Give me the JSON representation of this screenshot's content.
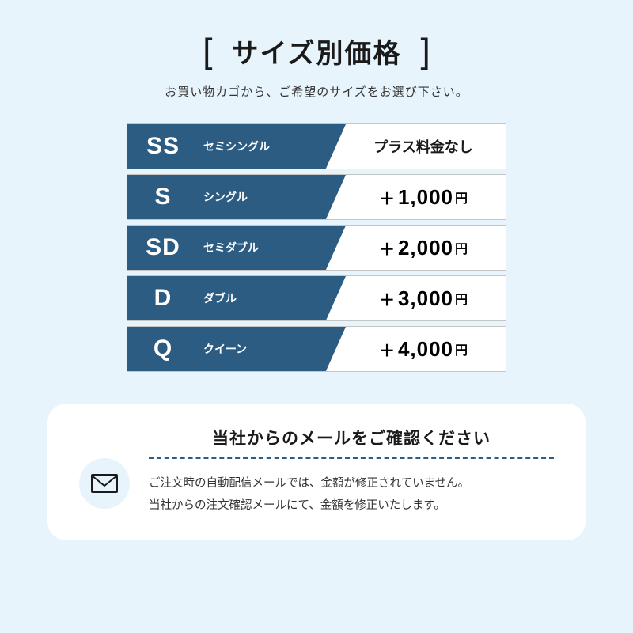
{
  "header": {
    "bracket_left": "[",
    "title": "サイズ別価格",
    "bracket_right": "]",
    "subtitle": "お買い物カゴから、ご希望のサイズをお選び下さい。"
  },
  "colors": {
    "page_bg": "#e8f4fb",
    "row_bg": "#ffffff",
    "row_border": "#c5c5c5",
    "label_bg": "#2d5c82",
    "label_text": "#ffffff",
    "text_dark": "#1a1a1a",
    "divider": "#2d5c82"
  },
  "price_table": {
    "rows": [
      {
        "code": "SS",
        "name": "セミシングル",
        "price_text": "プラス料金なし",
        "has_amount": false
      },
      {
        "code": "S",
        "name": "シングル",
        "plus": "＋",
        "amount": "1,000",
        "yen": "円",
        "has_amount": true
      },
      {
        "code": "SD",
        "name": "セミダブル",
        "plus": "＋",
        "amount": "2,000",
        "yen": "円",
        "has_amount": true
      },
      {
        "code": "D",
        "name": "ダブル",
        "plus": "＋",
        "amount": "3,000",
        "yen": "円",
        "has_amount": true
      },
      {
        "code": "Q",
        "name": "クイーン",
        "plus": "＋",
        "amount": "4,000",
        "yen": "円",
        "has_amount": true
      }
    ]
  },
  "notice": {
    "title": "当社からのメールをご確認ください",
    "line1": "ご注文時の自動配信メールでは、金額が修正されていません。",
    "line2": "当社からの注文確認メールにて、金額を修正いたします。"
  }
}
